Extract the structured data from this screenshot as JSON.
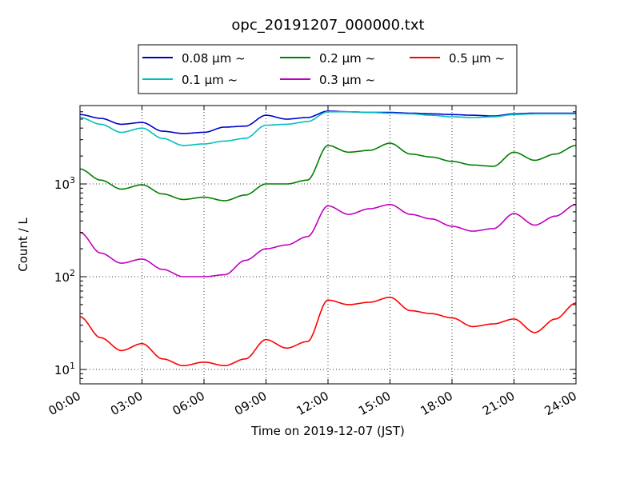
{
  "chart_data": {
    "type": "line",
    "title": "opc_20191207_000000.txt",
    "xlabel": "Time on 2019-12-07 (JST)",
    "ylabel": "Count / L",
    "x_unit": "hours",
    "xlim": [
      0,
      24
    ],
    "ylim": [
      7,
      7000
    ],
    "yscale": "log",
    "grid": true,
    "legend_position": "top-center, above plot",
    "x_ticks": [
      {
        "value": 0,
        "label": "00:00"
      },
      {
        "value": 3,
        "label": "03:00"
      },
      {
        "value": 6,
        "label": "06:00"
      },
      {
        "value": 9,
        "label": "09:00"
      },
      {
        "value": 12,
        "label": "12:00"
      },
      {
        "value": 15,
        "label": "15:00"
      },
      {
        "value": 18,
        "label": "18:00"
      },
      {
        "value": 21,
        "label": "21:00"
      },
      {
        "value": 24,
        "label": "24:00"
      }
    ],
    "y_ticks": [
      {
        "value": 10,
        "label": "10^1"
      },
      {
        "value": 100,
        "label": "10^2"
      },
      {
        "value": 1000,
        "label": "10^3"
      }
    ],
    "x": [
      0,
      1,
      2,
      3,
      4,
      5,
      6,
      7,
      8,
      9,
      10,
      11,
      12,
      13,
      14,
      15,
      16,
      17,
      18,
      19,
      20,
      21,
      22,
      23,
      24
    ],
    "series": [
      {
        "name": "0.08 μm ~",
        "color": "#0000cc",
        "values": [
          5600,
          5100,
          4400,
          4600,
          3700,
          3500,
          3600,
          4100,
          4200,
          5500,
          5000,
          5200,
          6100,
          6000,
          5900,
          5900,
          5800,
          5700,
          5600,
          5500,
          5400,
          5700,
          5800,
          5800,
          5800
        ]
      },
      {
        "name": "0.1 μm ~",
        "color": "#00bfbf",
        "values": [
          5200,
          4400,
          3600,
          4000,
          3100,
          2600,
          2700,
          2900,
          3100,
          4300,
          4400,
          4700,
          6000,
          6000,
          5900,
          5800,
          5700,
          5500,
          5300,
          5200,
          5300,
          5600,
          5700,
          5700,
          5700
        ]
      },
      {
        "name": "0.2 μm ~",
        "color": "#007f00",
        "values": [
          1450,
          1100,
          880,
          980,
          780,
          680,
          720,
          660,
          760,
          1000,
          1000,
          1100,
          2600,
          2200,
          2300,
          2750,
          2100,
          1950,
          1750,
          1600,
          1550,
          2200,
          1800,
          2100,
          2600
        ]
      },
      {
        "name": "0.3 μm ~",
        "color": "#bf00bf",
        "values": [
          300,
          180,
          140,
          155,
          120,
          100,
          100,
          105,
          150,
          200,
          220,
          270,
          580,
          470,
          540,
          600,
          470,
          420,
          350,
          310,
          330,
          480,
          360,
          450,
          600
        ]
      },
      {
        "name": "0.5 μm ~",
        "color": "#ff0000",
        "values": [
          37,
          22,
          16,
          19,
          13,
          11,
          12,
          11,
          13,
          21,
          17,
          20,
          56,
          50,
          53,
          60,
          43,
          40,
          36,
          29,
          31,
          35,
          25,
          35,
          52
        ]
      }
    ]
  }
}
